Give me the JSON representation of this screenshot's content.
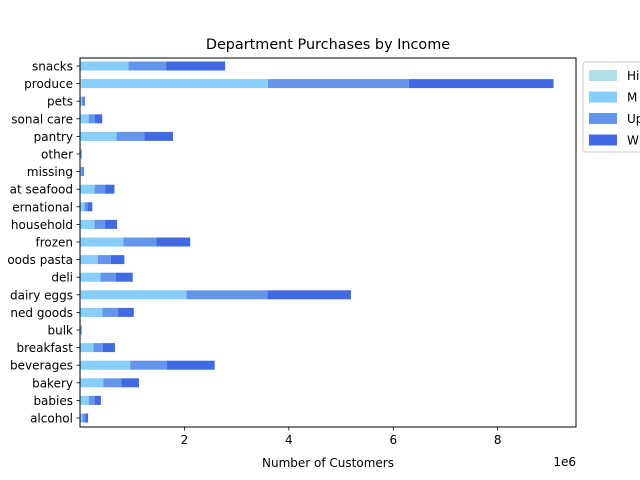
{
  "chart_data": {
    "type": "bar",
    "orientation": "horizontal",
    "stacked": true,
    "title": "Department Purchases by Income",
    "xlabel": "Number of Customers",
    "ylabel": "",
    "x_offset_label": "1e6",
    "xlim": [
      0,
      9.5
    ],
    "x_ticks": [
      2,
      4,
      6,
      8
    ],
    "grid": false,
    "legend_position": "outside-top-right",
    "categories": [
      "alcohol",
      "babies",
      "bakery",
      "beverages",
      "breakfast",
      "bulk",
      "canned goods",
      "dairy eggs",
      "deli",
      "dry goods pasta",
      "frozen",
      "household",
      "international",
      "meat seafood",
      "missing",
      "other",
      "pantry",
      "personal care",
      "pets",
      "produce",
      "snacks"
    ],
    "category_labels": [
      "alcohol",
      "babies",
      "bakery",
      "beverages",
      "breakfast",
      "bulk",
      "ned goods",
      "dairy eggs",
      "deli",
      "oods pasta",
      "frozen",
      "household",
      "ernational",
      "at seafood",
      "missing",
      "other",
      "pantry",
      "sonal care",
      "pets",
      "produce",
      "snacks"
    ],
    "series": [
      {
        "name": "Hi",
        "color": "#b0e0e6",
        "values": [
          0.005,
          0.01,
          0.01,
          0.01,
          0.01,
          0.002,
          0.01,
          0.02,
          0.01,
          0.01,
          0.01,
          0.01,
          0.005,
          0.01,
          0.003,
          0.002,
          0.01,
          0.005,
          0.003,
          0.03,
          0.01
        ]
      },
      {
        "name": "M",
        "color": "#87cefa",
        "values": [
          0.04,
          0.16,
          0.44,
          0.95,
          0.25,
          0.01,
          0.42,
          2.02,
          0.38,
          0.33,
          0.82,
          0.27,
          0.08,
          0.27,
          0.02,
          0.01,
          0.69,
          0.16,
          0.03,
          3.57,
          0.92
        ]
      },
      {
        "name": "Up",
        "color": "#6495ed",
        "values": [
          0.06,
          0.11,
          0.34,
          0.7,
          0.18,
          0.01,
          0.3,
          1.55,
          0.3,
          0.25,
          0.63,
          0.2,
          0.06,
          0.2,
          0.02,
          0.01,
          0.53,
          0.12,
          0.03,
          2.7,
          0.72
        ]
      },
      {
        "name": "W",
        "color": "#4169e1",
        "values": [
          0.05,
          0.12,
          0.34,
          0.92,
          0.23,
          0.01,
          0.3,
          1.6,
          0.32,
          0.26,
          0.65,
          0.23,
          0.09,
          0.18,
          0.03,
          0.01,
          0.55,
          0.14,
          0.03,
          2.77,
          1.13
        ]
      }
    ]
  }
}
